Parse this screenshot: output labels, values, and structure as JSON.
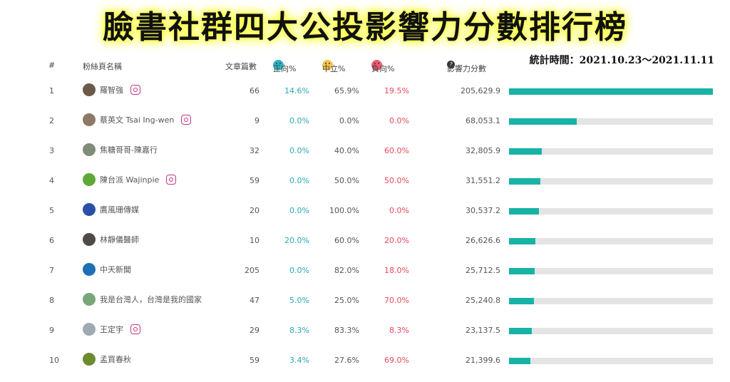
{
  "banner": {
    "title": "臉書社群四大公投影響力分數排行榜"
  },
  "period": "統計時間：2021.10.23～2021.11.11",
  "columns": {
    "rank": "#",
    "name": "粉絲頁名稱",
    "posts": "文章篇數",
    "positive": "正向%",
    "neutral": "中立%",
    "negative": "負向%",
    "score": "影響力分數"
  },
  "colors": {
    "positive": "#2aa9b5",
    "negative": "#e5485c",
    "bar": "#17b3a6",
    "bar_track": "#e4e4e4"
  },
  "rows": [
    {
      "rank": "1",
      "name": "羅智強",
      "instagram": true,
      "posts": "66",
      "positive": "14.6%",
      "neutral": "65.9%",
      "negative": "19.5%",
      "score": "205,629.9",
      "score_value": 205629.9,
      "avatar_color": "#6b5a4a"
    },
    {
      "rank": "2",
      "name": "蔡英文 Tsai Ing-wen",
      "instagram": true,
      "posts": "9",
      "positive": "0.0%",
      "neutral": "0.0%",
      "negative": "0.0%",
      "score": "68,053.1",
      "score_value": 68053.1,
      "avatar_color": "#8d7966"
    },
    {
      "rank": "3",
      "name": "焦糖哥哥-陳嘉行",
      "instagram": false,
      "posts": "32",
      "positive": "0.0%",
      "neutral": "40.0%",
      "negative": "60.0%",
      "score": "32,805.9",
      "score_value": 32805.9,
      "avatar_color": "#7f8c7a"
    },
    {
      "rank": "4",
      "name": "陳台派 Wajinpie",
      "instagram": true,
      "posts": "59",
      "positive": "0.0%",
      "neutral": "50.0%",
      "negative": "50.0%",
      "score": "31,551.2",
      "score_value": 31551.2,
      "avatar_color": "#5ea838"
    },
    {
      "rank": "5",
      "name": "鷹風珊傳媒",
      "instagram": false,
      "posts": "20",
      "positive": "0.0%",
      "neutral": "100.0%",
      "negative": "0.0%",
      "score": "30,537.2",
      "score_value": 30537.2,
      "avatar_color": "#2b4fa8"
    },
    {
      "rank": "6",
      "name": "林靜儀醫師",
      "instagram": false,
      "posts": "10",
      "positive": "20.0%",
      "neutral": "60.0%",
      "negative": "20.0%",
      "score": "26,626.6",
      "score_value": 26626.6,
      "avatar_color": "#4e4a46"
    },
    {
      "rank": "7",
      "name": "中天新聞",
      "instagram": false,
      "posts": "205",
      "positive": "0.0%",
      "neutral": "82.0%",
      "negative": "18.0%",
      "score": "25,712.5",
      "score_value": 25712.5,
      "avatar_color": "#1f6fb5"
    },
    {
      "rank": "8",
      "name": "我是台灣人，台灣是我的國家",
      "instagram": false,
      "posts": "47",
      "positive": "5.0%",
      "neutral": "25.0%",
      "negative": "70.0%",
      "score": "25,240.8",
      "score_value": 25240.8,
      "avatar_color": "#7aa77a"
    },
    {
      "rank": "9",
      "name": "王定宇",
      "instagram": true,
      "posts": "29",
      "positive": "8.3%",
      "neutral": "83.3%",
      "negative": "8.3%",
      "score": "23,137.5",
      "score_value": 23137.5,
      "avatar_color": "#9fa8b3"
    },
    {
      "rank": "10",
      "name": "孟買春秋",
      "instagram": false,
      "posts": "59",
      "positive": "3.4%",
      "neutral": "27.6%",
      "negative": "69.0%",
      "score": "21,399.6",
      "score_value": 21399.6,
      "avatar_color": "#6c8a2f"
    }
  ]
}
